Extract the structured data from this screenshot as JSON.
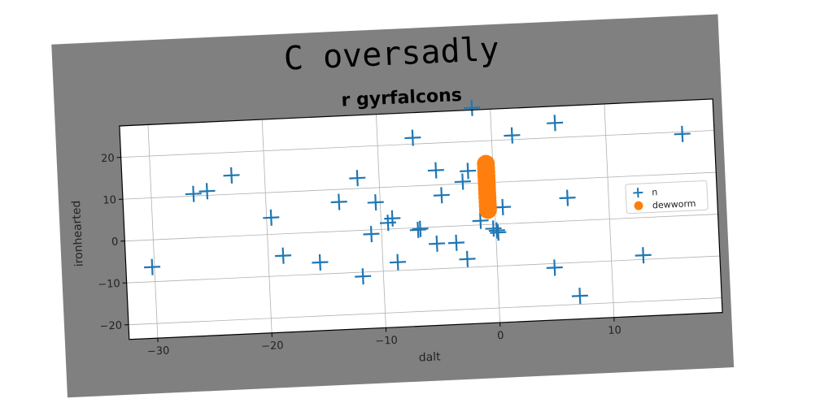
{
  "figure": {
    "suptitle": "C oversadly",
    "background": "#808080"
  },
  "chart_data": {
    "type": "scatter",
    "title": "r gyrfalcons",
    "xlabel": "dalt",
    "ylabel": "ironhearted",
    "xlim": [
      -32.5,
      19.5
    ],
    "ylim": [
      -23.5,
      27.5
    ],
    "xticks": [
      -30,
      -20,
      -10,
      0,
      10
    ],
    "yticks": [
      -20,
      -10,
      0,
      10,
      20
    ],
    "grid": true,
    "legend_position": "center-right",
    "series": [
      {
        "name": "n",
        "marker": "plus",
        "color": "#1f77b4",
        "points": [
          [
            -30.2,
            -6.5
          ],
          [
            -26.3,
            10.5
          ],
          [
            -25.1,
            11
          ],
          [
            -22.9,
            14.5
          ],
          [
            -19.6,
            4
          ],
          [
            -18.7,
            -5.2
          ],
          [
            -15.5,
            -7.2
          ],
          [
            -13.6,
            7
          ],
          [
            -11.9,
            12.5
          ],
          [
            -11.8,
            -11
          ],
          [
            -10.9,
            -1
          ],
          [
            -10.4,
            6.5
          ],
          [
            -9.4,
            1.5
          ],
          [
            -9,
            2.5
          ],
          [
            -8.7,
            -8
          ],
          [
            -6.9,
            21.5
          ],
          [
            -6.8,
            -0.5
          ],
          [
            -6.6,
            -0.3
          ],
          [
            -5.2,
            -4
          ],
          [
            -5,
            13.5
          ],
          [
            -4.6,
            7.5
          ],
          [
            -3.5,
            -4
          ],
          [
            -2.7,
            10.5
          ],
          [
            -2.6,
            -8
          ],
          [
            -2.2,
            13
          ],
          [
            -1.6,
            28
          ],
          [
            -1.3,
            1
          ],
          [
            -0.2,
            -1
          ],
          [
            0.1,
            -1.5
          ],
          [
            0.2,
            -2
          ],
          [
            0.7,
            4
          ],
          [
            1.8,
            21
          ],
          [
            5,
            -11
          ],
          [
            5.6,
            23.5
          ],
          [
            6.4,
            5.5
          ],
          [
            7.1,
            -18
          ],
          [
            12.8,
            -9
          ],
          [
            16.7,
            19.5
          ]
        ]
      },
      {
        "name": "dewworm",
        "marker": "circle",
        "color": "#ff7f0e",
        "points": [
          [
            -0.6,
            14.5
          ],
          [
            -0.6,
            13.5
          ],
          [
            -0.6,
            12.5
          ],
          [
            -0.6,
            11.5
          ],
          [
            -0.6,
            10.5
          ],
          [
            -0.6,
            9.5
          ],
          [
            -0.6,
            8.5
          ],
          [
            -0.6,
            7.5
          ],
          [
            -0.6,
            6.5
          ],
          [
            -0.6,
            5.5
          ],
          [
            -0.6,
            4.5
          ],
          [
            -0.6,
            3.5
          ]
        ]
      }
    ]
  }
}
